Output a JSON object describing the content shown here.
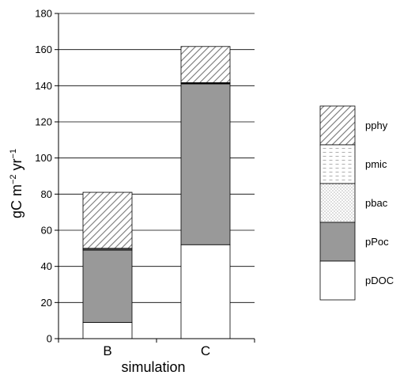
{
  "chart_data": {
    "type": "bar",
    "stacked": true,
    "xlabel": "simulation",
    "ylabel": "gC m",
    "ylabel_sup1": "−2",
    "ylabel_mid": " yr",
    "ylabel_sup2": "−1",
    "ylim": [
      0,
      180
    ],
    "yticks": [
      0,
      20,
      40,
      60,
      80,
      100,
      120,
      140,
      160,
      180
    ],
    "ytick_labels": [
      "0",
      "20",
      "40",
      "60",
      "80",
      "100",
      "120",
      "140",
      "160",
      "180"
    ],
    "grid": true,
    "legend_position": "right",
    "categories": [
      "B",
      "C"
    ],
    "series": [
      {
        "name": "pDOC",
        "pattern": "solid-white",
        "values": [
          9,
          52
        ]
      },
      {
        "name": "pPoc",
        "pattern": "solid-gray",
        "values": [
          40,
          89
        ]
      },
      {
        "name": "pbac",
        "pattern": "dots",
        "values": [
          0.5,
          0.3
        ]
      },
      {
        "name": "pmic",
        "pattern": "dashes",
        "values": [
          0.5,
          0.4
        ]
      },
      {
        "name": "pphy",
        "pattern": "diagonal-hatch",
        "values": [
          31,
          20
        ]
      }
    ],
    "legend_order": [
      "pphy",
      "pmic",
      "pbac",
      "pPoc",
      "pDOC"
    ]
  }
}
